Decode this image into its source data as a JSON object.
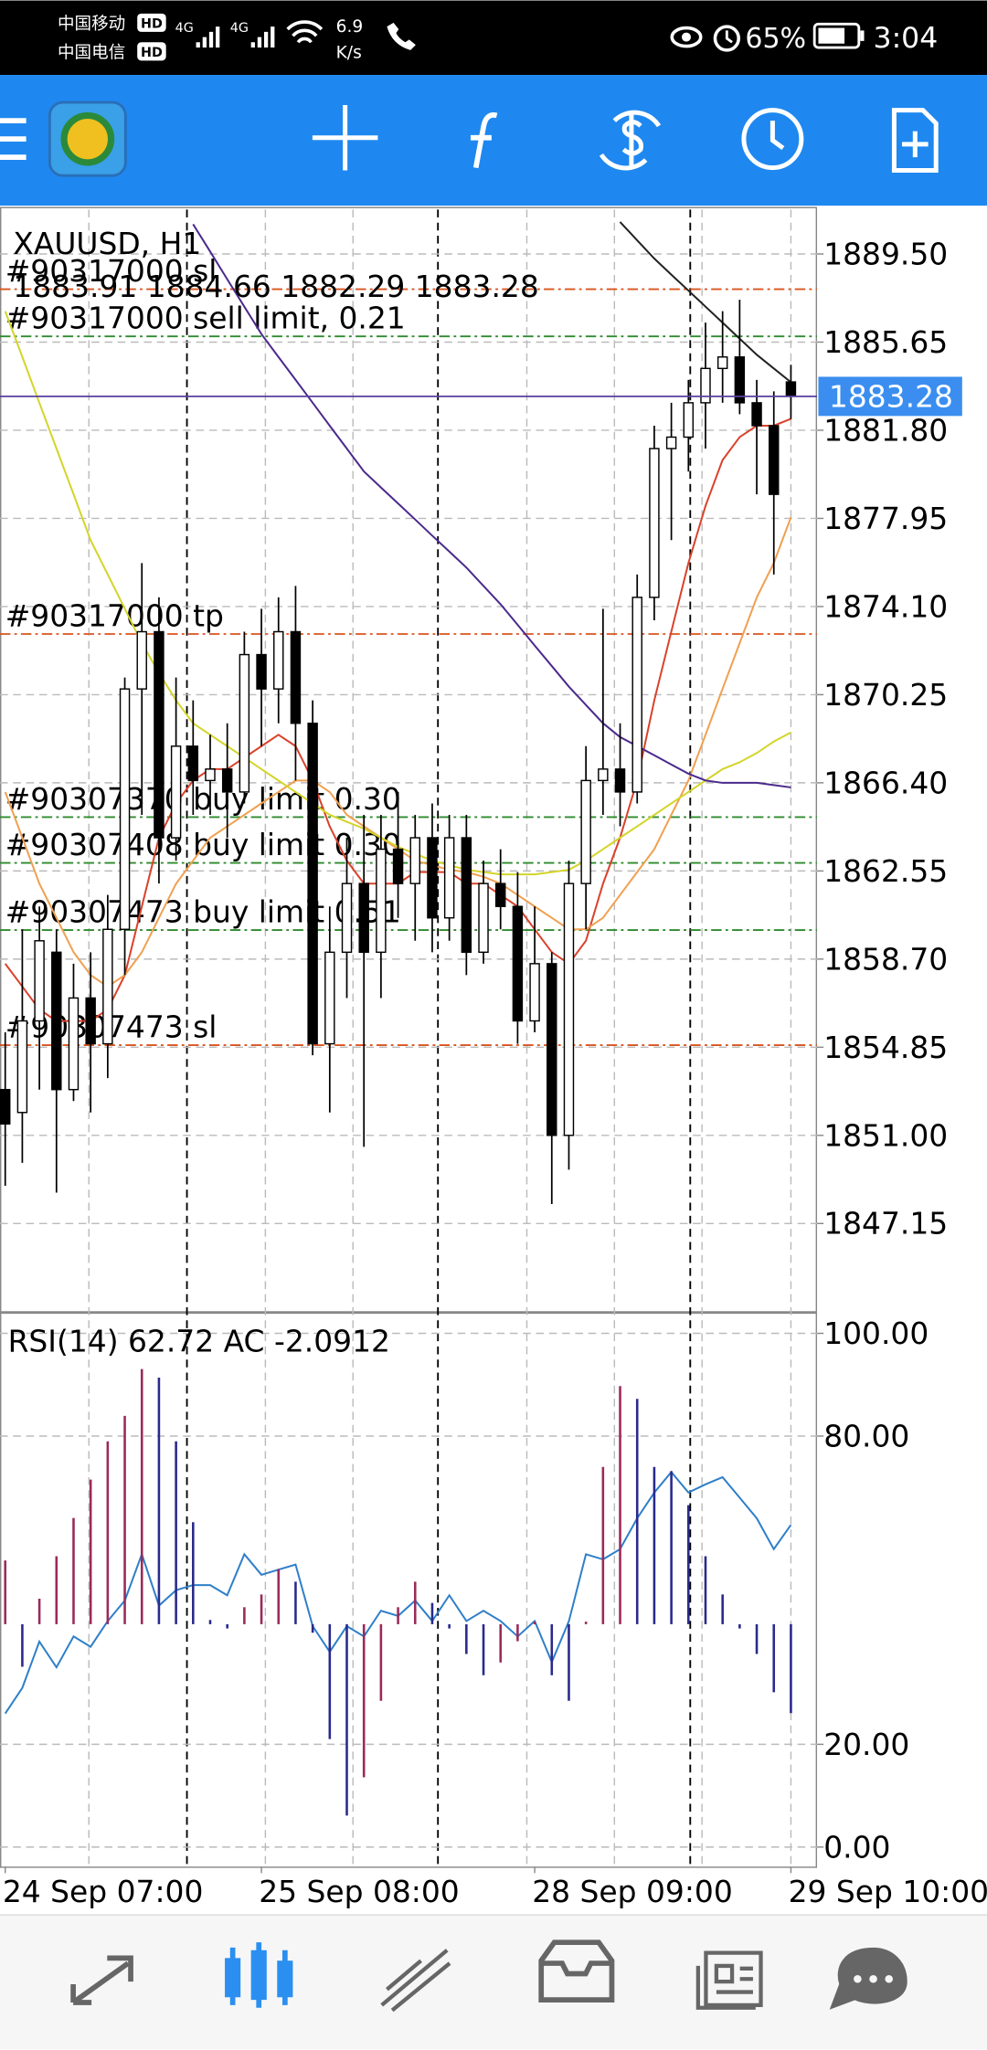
{
  "status_bar": {
    "carrier_1": "中国移动",
    "carrier_2": "中国电信",
    "hd": "HD",
    "network": "4G",
    "speed": "6.9",
    "speed_unit": "K/s",
    "battery": "65%",
    "time": "3:04"
  },
  "chart_data": [
    {
      "type": "candlestick",
      "title": "XAUUSD, H1",
      "open": [
        1853,
        1852,
        1856,
        1859,
        1853,
        1857,
        1855,
        1860,
        1870.5,
        1873,
        1864,
        1868,
        1866.5,
        1867,
        1866,
        1872,
        1870.5,
        1873,
        1869,
        1855,
        1859,
        1862,
        1859,
        1863.5,
        1862,
        1864,
        1860.5,
        1864,
        1859,
        1862,
        1861,
        1856,
        1858.5,
        1851,
        1862,
        1866.5,
        1867,
        1866,
        1874.5,
        1881,
        1881.5,
        1883,
        1884.5,
        1885,
        1883,
        1882,
        1883.91
      ],
      "high": [
        1855.5,
        1860,
        1861,
        1860,
        1858.5,
        1859,
        1861.5,
        1871,
        1876,
        1874.5,
        1871,
        1870,
        1868.5,
        1869,
        1873,
        1874,
        1874.5,
        1875,
        1870,
        1861,
        1864,
        1865,
        1865,
        1866,
        1865,
        1865.5,
        1865,
        1865,
        1863,
        1863.5,
        1862.5,
        1861,
        1859,
        1863,
        1868,
        1874,
        1869,
        1875.5,
        1882,
        1883,
        1884,
        1886.5,
        1887,
        1887.5,
        1884,
        1883.5,
        1884.66
      ],
      "low": [
        1848.8,
        1849.8,
        1853,
        1848.5,
        1852.5,
        1852,
        1853.5,
        1858,
        1865,
        1862,
        1863,
        1865,
        1865,
        1864,
        1865.5,
        1868,
        1869,
        1866.5,
        1854.5,
        1852,
        1857,
        1850.5,
        1857,
        1860.5,
        1859.5,
        1859,
        1859.5,
        1858,
        1858.5,
        1860,
        1855,
        1855.5,
        1848,
        1849.5,
        1860,
        1865,
        1864.5,
        1865.5,
        1873.5,
        1877,
        1880,
        1881,
        1883,
        1882.5,
        1879,
        1875.5,
        1882.29
      ],
      "close": [
        1851.5,
        1856,
        1859.5,
        1853,
        1857,
        1855,
        1860,
        1870.5,
        1873,
        1864,
        1868,
        1866.5,
        1867,
        1866,
        1872,
        1870.5,
        1873,
        1869,
        1855,
        1859,
        1862,
        1859,
        1863.5,
        1862,
        1864,
        1860.5,
        1864,
        1859,
        1862,
        1861,
        1856,
        1858.5,
        1851,
        1862,
        1866.5,
        1867,
        1866,
        1874.5,
        1881,
        1881.5,
        1883,
        1884.5,
        1885,
        1883,
        1882,
        1879,
        1883.28
      ],
      "up_color": "#ffffff",
      "down_color": "#000000",
      "price_line_color": "#5a3fa0",
      "price_label_color": "#3b8ef0",
      "moving_averages": [
        {
          "color": "#d9422b",
          "values": [
            1858.5,
            1857.5,
            1856.5,
            1856,
            1856,
            1856,
            1856.5,
            1858,
            1861,
            1864,
            1865.5,
            1866.5,
            1867,
            1867,
            1867.5,
            1868,
            1868.5,
            1868,
            1866.5,
            1864.5,
            1863,
            1862,
            1862,
            1862,
            1862.5,
            1862.5,
            1862.5,
            1862,
            1862,
            1861.5,
            1861,
            1860,
            1859,
            1858.5,
            1859.5,
            1862,
            1864,
            1866.5,
            1870,
            1873,
            1876,
            1878.5,
            1880.5,
            1881.5,
            1882,
            1882,
            1882.3
          ]
        },
        {
          "color": "#f0a050",
          "values": [
            1866,
            1864,
            1862,
            1860.5,
            1859,
            1858,
            1857.5,
            1858,
            1859,
            1860.5,
            1862,
            1863,
            1864,
            1864.5,
            1865,
            1865.5,
            1866,
            1866.5,
            1866.5,
            1866,
            1865,
            1864.5,
            1864,
            1863.5,
            1863,
            1862.8,
            1862.6,
            1862.5,
            1862.3,
            1862,
            1861.5,
            1861,
            1860.5,
            1860,
            1860,
            1860.5,
            1861.5,
            1862.5,
            1863.5,
            1865,
            1866.5,
            1868.5,
            1870.5,
            1872.5,
            1874.5,
            1876,
            1878
          ]
        },
        {
          "color": "#d4d42a",
          "values": [
            1887,
            1885,
            1883,
            1881,
            1879,
            1877,
            1875.5,
            1874,
            1872.5,
            1871.2,
            1870,
            1869,
            1868.5,
            1868,
            1867.5,
            1867,
            1866.5,
            1866,
            1865.5,
            1865,
            1864.7,
            1864.4,
            1864,
            1863.6,
            1863.3,
            1863,
            1862.8,
            1862.6,
            1862.5,
            1862.4,
            1862.4,
            1862.4,
            1862.5,
            1862.6,
            1863,
            1863.5,
            1864,
            1864.5,
            1865,
            1865.5,
            1866,
            1866.5,
            1867,
            1867.3,
            1867.7,
            1868.2,
            1868.6
          ]
        },
        {
          "color": "#4b2a8c",
          "values": [
            null,
            null,
            null,
            null,
            null,
            null,
            null,
            null,
            null,
            null,
            null,
            1890.8,
            1889.6,
            1888.4,
            1887.2,
            1886,
            1885,
            1884,
            1883,
            1882,
            1881,
            1880,
            1879.3,
            1878.6,
            1877.9,
            1877.2,
            1876.5,
            1875.8,
            1875,
            1874.2,
            1873.3,
            1872.4,
            1871.5,
            1870.6,
            1869.8,
            1869,
            1868.4,
            1868,
            1867.6,
            1867.2,
            1866.8,
            1866.5,
            1866.4,
            1866.4,
            1866.4,
            1866.3,
            1866.2
          ]
        },
        {
          "color": "#222222",
          "values": [
            null,
            null,
            null,
            null,
            null,
            null,
            null,
            null,
            null,
            null,
            null,
            null,
            null,
            null,
            null,
            null,
            null,
            null,
            null,
            null,
            null,
            null,
            null,
            null,
            null,
            null,
            null,
            null,
            null,
            null,
            null,
            null,
            null,
            null,
            null,
            null,
            1890.9,
            1890.1,
            1889.3,
            1888.6,
            1887.9,
            1887.2,
            1886.5,
            1885.8,
            1885.1,
            1884.5,
            1883.9
          ]
        }
      ],
      "levels": [
        {
          "label": "#90317000 sl",
          "value": 1887.96,
          "color": "#d9541e"
        },
        {
          "label": "#90317000 sell limit, 0.21",
          "value": 1885.9,
          "color": "#2e8b2e"
        },
        {
          "label": "#90317000 tp",
          "value": 1872.9,
          "color": "#d9541e"
        },
        {
          "label": "#90307370 buy limit 0.30",
          "value": 1864.9,
          "color": "#2e8b2e"
        },
        {
          "label": "#90307408 buy limit 0.30",
          "value": 1862.9,
          "color": "#2e8b2e"
        },
        {
          "label": "#90307473 buy limit 0.51",
          "value": 1859.97,
          "color": "#2e8b2e"
        },
        {
          "label": "#90307473 sl",
          "value": 1854.94,
          "color": "#d9541e"
        }
      ],
      "ylim": [
        1843.32,
        1891.44
      ],
      "yticks": [
        {
          "value": 1889.5,
          "label": "1889.50"
        },
        1885.65,
        {
          "value": 1881.8,
          "label": "1881.80"
        },
        1877.95,
        {
          "value": 1874.1,
          "label": "1874.10"
        },
        1870.25,
        {
          "value": 1866.4,
          "label": "1866.40"
        },
        1862.55,
        {
          "value": 1858.7,
          "label": "1858.70"
        },
        1854.85,
        {
          "value": 1851,
          "label": "1851.00"
        },
        1847.15
      ],
      "grid": true
    },
    {
      "type": "indicator",
      "categories": [
        "24 Sep 07:00",
        null,
        null,
        null,
        null,
        null,
        null,
        null,
        null,
        null,
        null,
        null,
        null,
        null,
        null,
        "25 Sep 08:00",
        null,
        null,
        null,
        null,
        null,
        null,
        null,
        null,
        null,
        null,
        null,
        null,
        null,
        null,
        null,
        "28 Sep 09:00",
        null,
        null,
        null,
        null,
        null,
        null,
        null,
        null,
        null,
        null,
        null,
        null,
        null,
        null,
        "29 Sep 10:00"
      ],
      "series": [
        {
          "name": "RSI(14)",
          "color": "#2f7fc9",
          "values": [
            26,
            31,
            40,
            35,
            41,
            39,
            44,
            48,
            57,
            47,
            50,
            51,
            51,
            49,
            57,
            53,
            54,
            55,
            43,
            38,
            43,
            41,
            46,
            45,
            48,
            44,
            49,
            44,
            46,
            44,
            41,
            44,
            36,
            44,
            57,
            56,
            58,
            64,
            69,
            73,
            69,
            70.6,
            72,
            68,
            64,
            58,
            62.72
          ]
        },
        {
          "name": "AC",
          "axis": "y2",
          "up_color": "#9b2a5a",
          "down_color": "#2a2a8c",
          "values": [
            1.5,
            -1.0,
            0.6,
            1.6,
            2.5,
            3.4,
            4.3,
            4.9,
            6.0,
            5.8,
            4.3,
            2.4,
            0.1,
            -0.1,
            0.4,
            0.7,
            1.3,
            1.0,
            -0.2,
            -2.7,
            -4.5,
            -3.6,
            -1.8,
            0.4,
            1.0,
            0.5,
            -0.1,
            -0.7,
            -1.2,
            -0.9,
            -0.4,
            0.06,
            -1.2,
            -1.8,
            0.06,
            3.7,
            5.6,
            5.3,
            3.7,
            3.6,
            2.8,
            1.6,
            0.7,
            -0.1,
            -0.7,
            -1.6,
            -2.0912
          ]
        }
      ],
      "ylim": [
        -3.8,
        103.55
      ],
      "yticks": [
        {
          "value": 0,
          "label": "0.00"
        },
        {
          "value": 20,
          "label": "20.00"
        },
        {
          "value": 80,
          "label": "80.00"
        },
        {
          "value": 100,
          "label": "100.00"
        }
      ],
      "y2lim": [
        -5.7,
        7.27
      ],
      "grid": true
    }
  ]
}
